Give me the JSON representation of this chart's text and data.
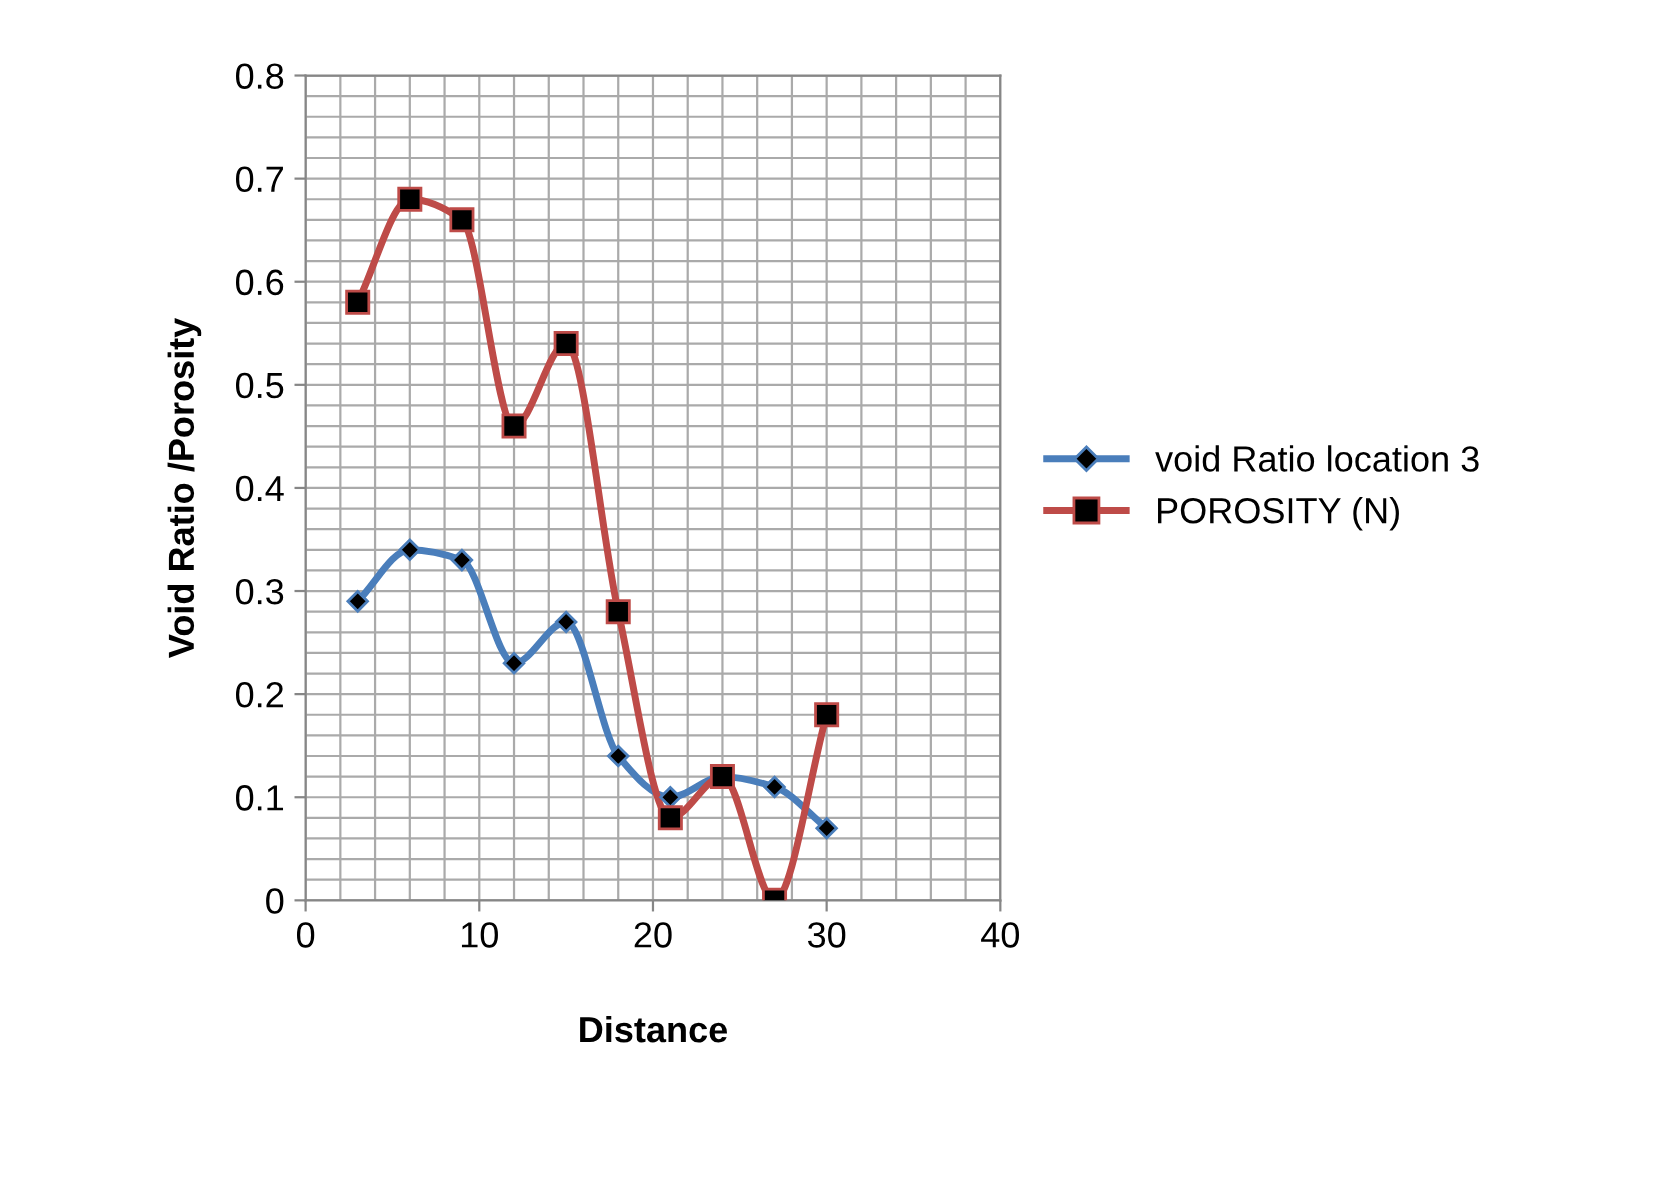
{
  "chart_data": {
    "type": "line",
    "xlabel": "Distance",
    "ylabel": "Void Ratio /Porosity",
    "x": [
      3,
      6,
      9,
      12,
      15,
      18,
      21,
      24,
      27,
      30
    ],
    "series": [
      {
        "name": "void Ratio location 3",
        "color": "#4a7ebb",
        "marker": "diamond",
        "values": [
          0.29,
          0.34,
          0.33,
          0.23,
          0.27,
          0.14,
          0.1,
          0.12,
          0.11,
          0.07
        ]
      },
      {
        "name": "POROSITY (N)",
        "color": "#be4b48",
        "marker": "square",
        "values": [
          0.58,
          0.68,
          0.66,
          0.46,
          0.54,
          0.28,
          0.08,
          0.12,
          0.0,
          0.18
        ]
      }
    ],
    "xlim": [
      0,
      40
    ],
    "xticks": [
      0,
      10,
      20,
      30,
      40
    ],
    "ylim": [
      0,
      0.8
    ],
    "yticks": [
      0,
      0.1,
      0.2,
      0.3,
      0.4,
      0.5,
      0.6,
      0.7,
      0.8
    ],
    "grid": true,
    "legend": "right",
    "line_style": "solid"
  }
}
